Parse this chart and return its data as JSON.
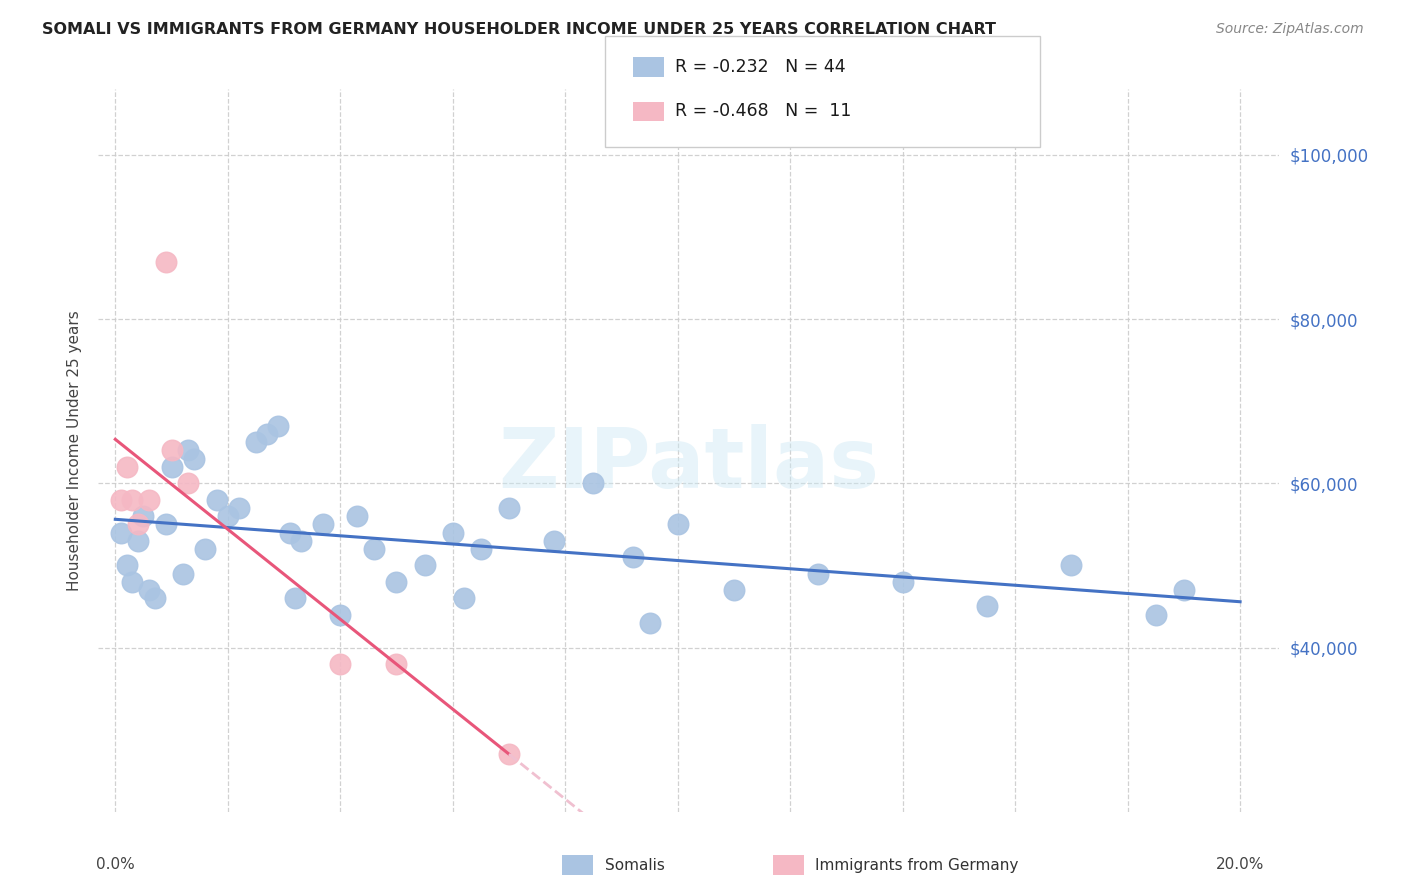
{
  "title": "SOMALI VS IMMIGRANTS FROM GERMANY HOUSEHOLDER INCOME UNDER 25 YEARS CORRELATION CHART",
  "source": "Source: ZipAtlas.com",
  "ylabel": "Householder Income Under 25 years",
  "somali_R": "-0.232",
  "somali_N": "44",
  "germany_R": "-0.468",
  "germany_N": "11",
  "somali_color": "#aac4e2",
  "germany_color": "#f5b8c4",
  "somali_line_color": "#4472c4",
  "germany_line_color": "#e8567a",
  "germany_line_ext_color": "#f0c0d0",
  "ytick_color": "#4472c4",
  "xlim": [
    0.0,
    0.2
  ],
  "ylim": [
    20000,
    108000
  ],
  "yticks": [
    40000,
    60000,
    80000,
    100000
  ],
  "ytick_labels": [
    "$40,000",
    "$60,000",
    "$80,000",
    "$100,000"
  ],
  "somali_x": [
    0.001,
    0.002,
    0.003,
    0.004,
    0.005,
    0.006,
    0.007,
    0.009,
    0.01,
    0.012,
    0.013,
    0.014,
    0.016,
    0.018,
    0.02,
    0.022,
    0.025,
    0.027,
    0.029,
    0.031,
    0.033,
    0.037,
    0.04,
    0.043,
    0.046,
    0.05,
    0.055,
    0.06,
    0.065,
    0.07,
    0.078,
    0.085,
    0.092,
    0.1,
    0.11,
    0.125,
    0.14,
    0.155,
    0.17,
    0.185,
    0.062,
    0.095,
    0.032,
    0.19
  ],
  "somali_y": [
    54000,
    50000,
    48000,
    53000,
    56000,
    47000,
    46000,
    55000,
    62000,
    49000,
    64000,
    63000,
    52000,
    58000,
    56000,
    57000,
    65000,
    66000,
    67000,
    54000,
    53000,
    55000,
    44000,
    56000,
    52000,
    48000,
    50000,
    54000,
    52000,
    57000,
    53000,
    60000,
    51000,
    55000,
    47000,
    49000,
    48000,
    45000,
    50000,
    44000,
    46000,
    43000,
    46000,
    47000
  ],
  "germany_x": [
    0.001,
    0.002,
    0.003,
    0.004,
    0.006,
    0.009,
    0.01,
    0.013,
    0.04,
    0.05,
    0.07
  ],
  "germany_y": [
    58000,
    62000,
    58000,
    55000,
    58000,
    87000,
    64000,
    60000,
    38000,
    38000,
    27000
  ],
  "legend_somali_label": "Somalis",
  "legend_germany_label": "Immigrants from Germany"
}
